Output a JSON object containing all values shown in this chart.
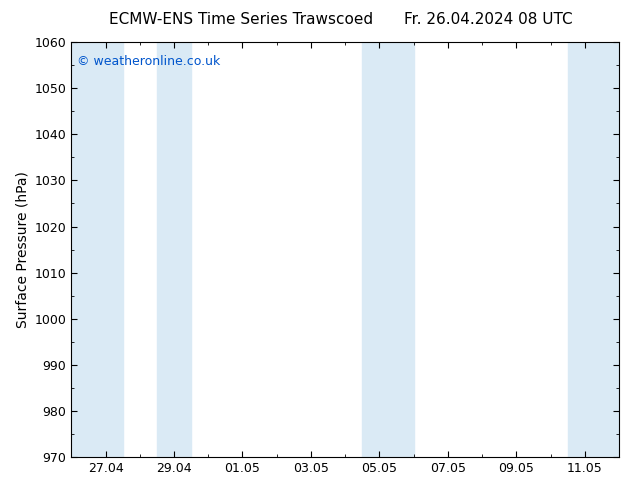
{
  "title_left": "ECMW-ENS Time Series Trawscoed",
  "title_right": "Fr. 26.04.2024 08 UTC",
  "ylabel": "Surface Pressure (hPa)",
  "ylim": [
    970,
    1060
  ],
  "yticks": [
    970,
    980,
    990,
    1000,
    1010,
    1020,
    1030,
    1040,
    1050,
    1060
  ],
  "xtick_labels": [
    "27.04",
    "29.04",
    "01.05",
    "03.05",
    "05.05",
    "07.05",
    "09.05",
    "11.05"
  ],
  "xtick_positions": [
    1,
    3,
    5,
    7,
    9,
    11,
    13,
    15
  ],
  "x_min": 0,
  "x_max": 16,
  "background_color": "#ffffff",
  "plot_bg_color": "#ffffff",
  "band_color": "#daeaf5",
  "bands": [
    {
      "start": 0.0,
      "end": 1.5
    },
    {
      "start": 2.5,
      "end": 3.5
    },
    {
      "start": 8.5,
      "end": 10.0
    },
    {
      "start": 14.5,
      "end": 16.0
    }
  ],
  "copyright_text": "© weatheronline.co.uk",
  "copyright_color": "#0055cc",
  "title_fontsize": 11,
  "axis_label_fontsize": 10,
  "tick_fontsize": 9,
  "copyright_fontsize": 9
}
